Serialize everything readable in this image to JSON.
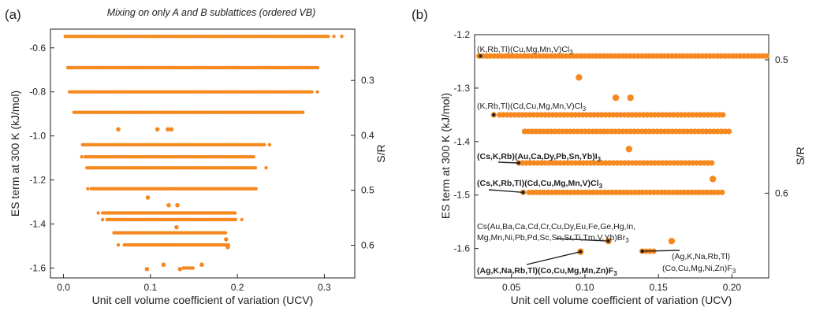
{
  "chart_data": [
    {
      "type": "scatter",
      "panel_label": "(a)",
      "title": "Mixing on only A and B sublattices (ordered VB)",
      "xlabel": "Unit cell volume coefficient of variation (UCV)",
      "ylabel": "ES term at 300 K (kJ/mol)",
      "y2label": "S/R",
      "xlim": [
        -0.015,
        0.335
      ],
      "ylim": [
        -1.645,
        -0.515
      ],
      "xticks": [
        "0.0",
        "0.1",
        "0.2",
        "0.3"
      ],
      "xtick_values": [
        0.0,
        0.1,
        0.2,
        0.3
      ],
      "yticks": [
        "-1.6",
        "-1.4",
        "-1.2",
        "-1.0",
        "-0.8",
        "-0.6"
      ],
      "ytick_values": [
        -1.6,
        -1.4,
        -1.2,
        -1.0,
        -0.8,
        -0.6
      ],
      "y2ticks": [
        "0.3",
        "0.4",
        "0.5",
        "0.6"
      ],
      "y2tick_values": [
        0.3,
        0.4,
        0.5,
        0.6
      ],
      "y2_relation": "ES = -S/R * 8.314e-3 * 300 (kJ/mol)",
      "marker_color": "#f5891f",
      "rows": [
        {
          "y": -0.548,
          "x_start": 0.002,
          "x_end": 0.305,
          "extra_x": [
            0.311,
            0.32
          ]
        },
        {
          "y": -0.69,
          "x_start": 0.005,
          "x_end": 0.293,
          "extra_x": []
        },
        {
          "y": -0.8,
          "x_start": 0.007,
          "x_end": 0.286,
          "extra_x": [
            0.292
          ]
        },
        {
          "y": -0.893,
          "x_start": 0.012,
          "x_end": 0.277,
          "extra_x": []
        },
        {
          "y": -1.04,
          "x_start": 0.022,
          "x_end": 0.231,
          "extra_x": [
            0.237
          ]
        },
        {
          "y": -1.095,
          "x_start": 0.025,
          "x_end": 0.219,
          "extra_x": [
            0.021
          ]
        },
        {
          "y": -1.145,
          "x_start": 0.027,
          "x_end": 0.222,
          "extra_x": [
            0.233
          ]
        },
        {
          "y": -1.24,
          "x_start": 0.032,
          "x_end": 0.223,
          "extra_x": [
            0.028
          ]
        },
        {
          "y": -1.35,
          "x_start": 0.045,
          "x_end": 0.199,
          "extra_x": [
            0.04
          ]
        },
        {
          "y": -1.38,
          "x_start": 0.05,
          "x_end": 0.2,
          "extra_x": [
            0.045,
            0.205
          ]
        },
        {
          "y": -1.44,
          "x_start": 0.058,
          "x_end": 0.188,
          "extra_x": []
        },
        {
          "y": -1.495,
          "x_start": 0.07,
          "x_end": 0.191,
          "extra_x": [
            0.063
          ]
        },
        {
          "y": -1.6,
          "x_start": 0.138,
          "x_end": 0.149,
          "extra_x": []
        }
      ],
      "scattered_points": [
        {
          "x": 0.063,
          "y": -0.97
        },
        {
          "x": 0.108,
          "y": -0.97
        },
        {
          "x": 0.12,
          "y": -0.97
        },
        {
          "x": 0.124,
          "y": -0.97
        },
        {
          "x": 0.097,
          "y": -1.28
        },
        {
          "x": 0.121,
          "y": -1.315
        },
        {
          "x": 0.131,
          "y": -1.315
        },
        {
          "x": 0.13,
          "y": -1.415
        },
        {
          "x": 0.187,
          "y": -1.47
        },
        {
          "x": 0.189,
          "y": -1.505
        },
        {
          "x": 0.096,
          "y": -1.605
        },
        {
          "x": 0.115,
          "y": -1.585
        },
        {
          "x": 0.159,
          "y": -1.585
        },
        {
          "x": 0.134,
          "y": -1.605
        }
      ]
    },
    {
      "type": "scatter",
      "panel_label": "(b)",
      "xlabel": "Unit cell volume coefficient of variation (UCV)",
      "ylabel": "ES term at 300 K (kJ/mol)",
      "y2label": "S/R",
      "xlim": [
        0.025,
        0.225
      ],
      "ylim": [
        -1.655,
        -1.2
      ],
      "xticks": [
        "0.05",
        "0.10",
        "0.15",
        "0.20"
      ],
      "xtick_values": [
        0.05,
        0.1,
        0.15,
        0.2
      ],
      "yticks": [
        "-1.6",
        "-1.5",
        "-1.4",
        "-1.3",
        "-1.2"
      ],
      "ytick_values": [
        -1.6,
        -1.5,
        -1.4,
        -1.3,
        -1.2
      ],
      "y2ticks": [
        "0.5",
        "0.6"
      ],
      "y2tick_values": [
        0.5,
        0.6
      ],
      "y2_relation": "ES = -S/R * 8.314e-3 * 300 (kJ/mol)",
      "marker_color": "#f5891f",
      "rows": [
        {
          "y": -1.24,
          "x_start": 0.028,
          "x_end": 0.225,
          "extra_x": []
        },
        {
          "y": -1.35,
          "x_start": 0.042,
          "x_end": 0.196,
          "extra_x": [
            0.038
          ]
        },
        {
          "y": -1.381,
          "x_start": 0.059,
          "x_end": 0.199,
          "extra_x": []
        },
        {
          "y": -1.44,
          "x_start": 0.055,
          "x_end": 0.188,
          "extra_x": []
        },
        {
          "y": -1.495,
          "x_start": 0.062,
          "x_end": 0.194,
          "extra_x": [
            0.058
          ]
        },
        {
          "y": -1.605,
          "x_start": 0.139,
          "x_end": 0.149,
          "extra_x": []
        }
      ],
      "scattered_points": [
        {
          "x": 0.096,
          "y": -1.28
        },
        {
          "x": 0.121,
          "y": -1.318
        },
        {
          "x": 0.131,
          "y": -1.318
        },
        {
          "x": 0.13,
          "y": -1.414
        },
        {
          "x": 0.187,
          "y": -1.47
        },
        {
          "x": 0.097,
          "y": -1.606
        },
        {
          "x": 0.116,
          "y": -1.586
        },
        {
          "x": 0.159,
          "y": -1.586
        }
      ],
      "annotations": [
        {
          "id": "ann1",
          "base": "(K,Rb,Tl)(Cu,Mg,Mn,V)Cl",
          "sub": "3",
          "bold": false,
          "point": [
            0.029,
            -1.24
          ]
        },
        {
          "id": "ann2",
          "base": "(K,Rb,Tl)(Cd,Cu,Mg,Mn,V)Cl",
          "sub": "3",
          "bold": false,
          "point": [
            0.038,
            -1.35
          ]
        },
        {
          "id": "ann3",
          "base": "(Cs,K,Rb)(Au,Ca,Dy,Pb,Sn,Yb)I",
          "sub": "3",
          "bold": true,
          "point": [
            0.055,
            -1.44
          ]
        },
        {
          "id": "ann4",
          "base": "(Cs,K,Rb,Tl)(Cd,Cu,Mg,Mn,V)Cl",
          "sub": "3",
          "bold": true,
          "point": [
            0.058,
            -1.495
          ]
        },
        {
          "id": "ann5",
          "line1": "Cs(Au,Ba,Ca,Cd,Cr,Cu,Dy,Eu,Fe,Ge,Hg,In,",
          "line2": "Mg,Mn,Ni,Pb,Pd,Sc,Sn,Sr,Ti,Tm,V,Yb)Br",
          "sub": "3",
          "bold": false,
          "point": [
            0.116,
            -1.586
          ]
        },
        {
          "id": "ann6",
          "base": "(Ag,K,Na,Rb,Tl)(Co,Cu,Mg,Mn,Zn)F",
          "sub": "3",
          "bold": true,
          "point": [
            0.097,
            -1.606
          ]
        },
        {
          "id": "ann7",
          "line1": "(Ag,K,Na,Rb,Tl)",
          "line2": "(Co,Cu,Mg,Ni,Zn)F",
          "sub": "3",
          "bold": false,
          "point": [
            0.139,
            -1.605
          ]
        }
      ]
    }
  ]
}
